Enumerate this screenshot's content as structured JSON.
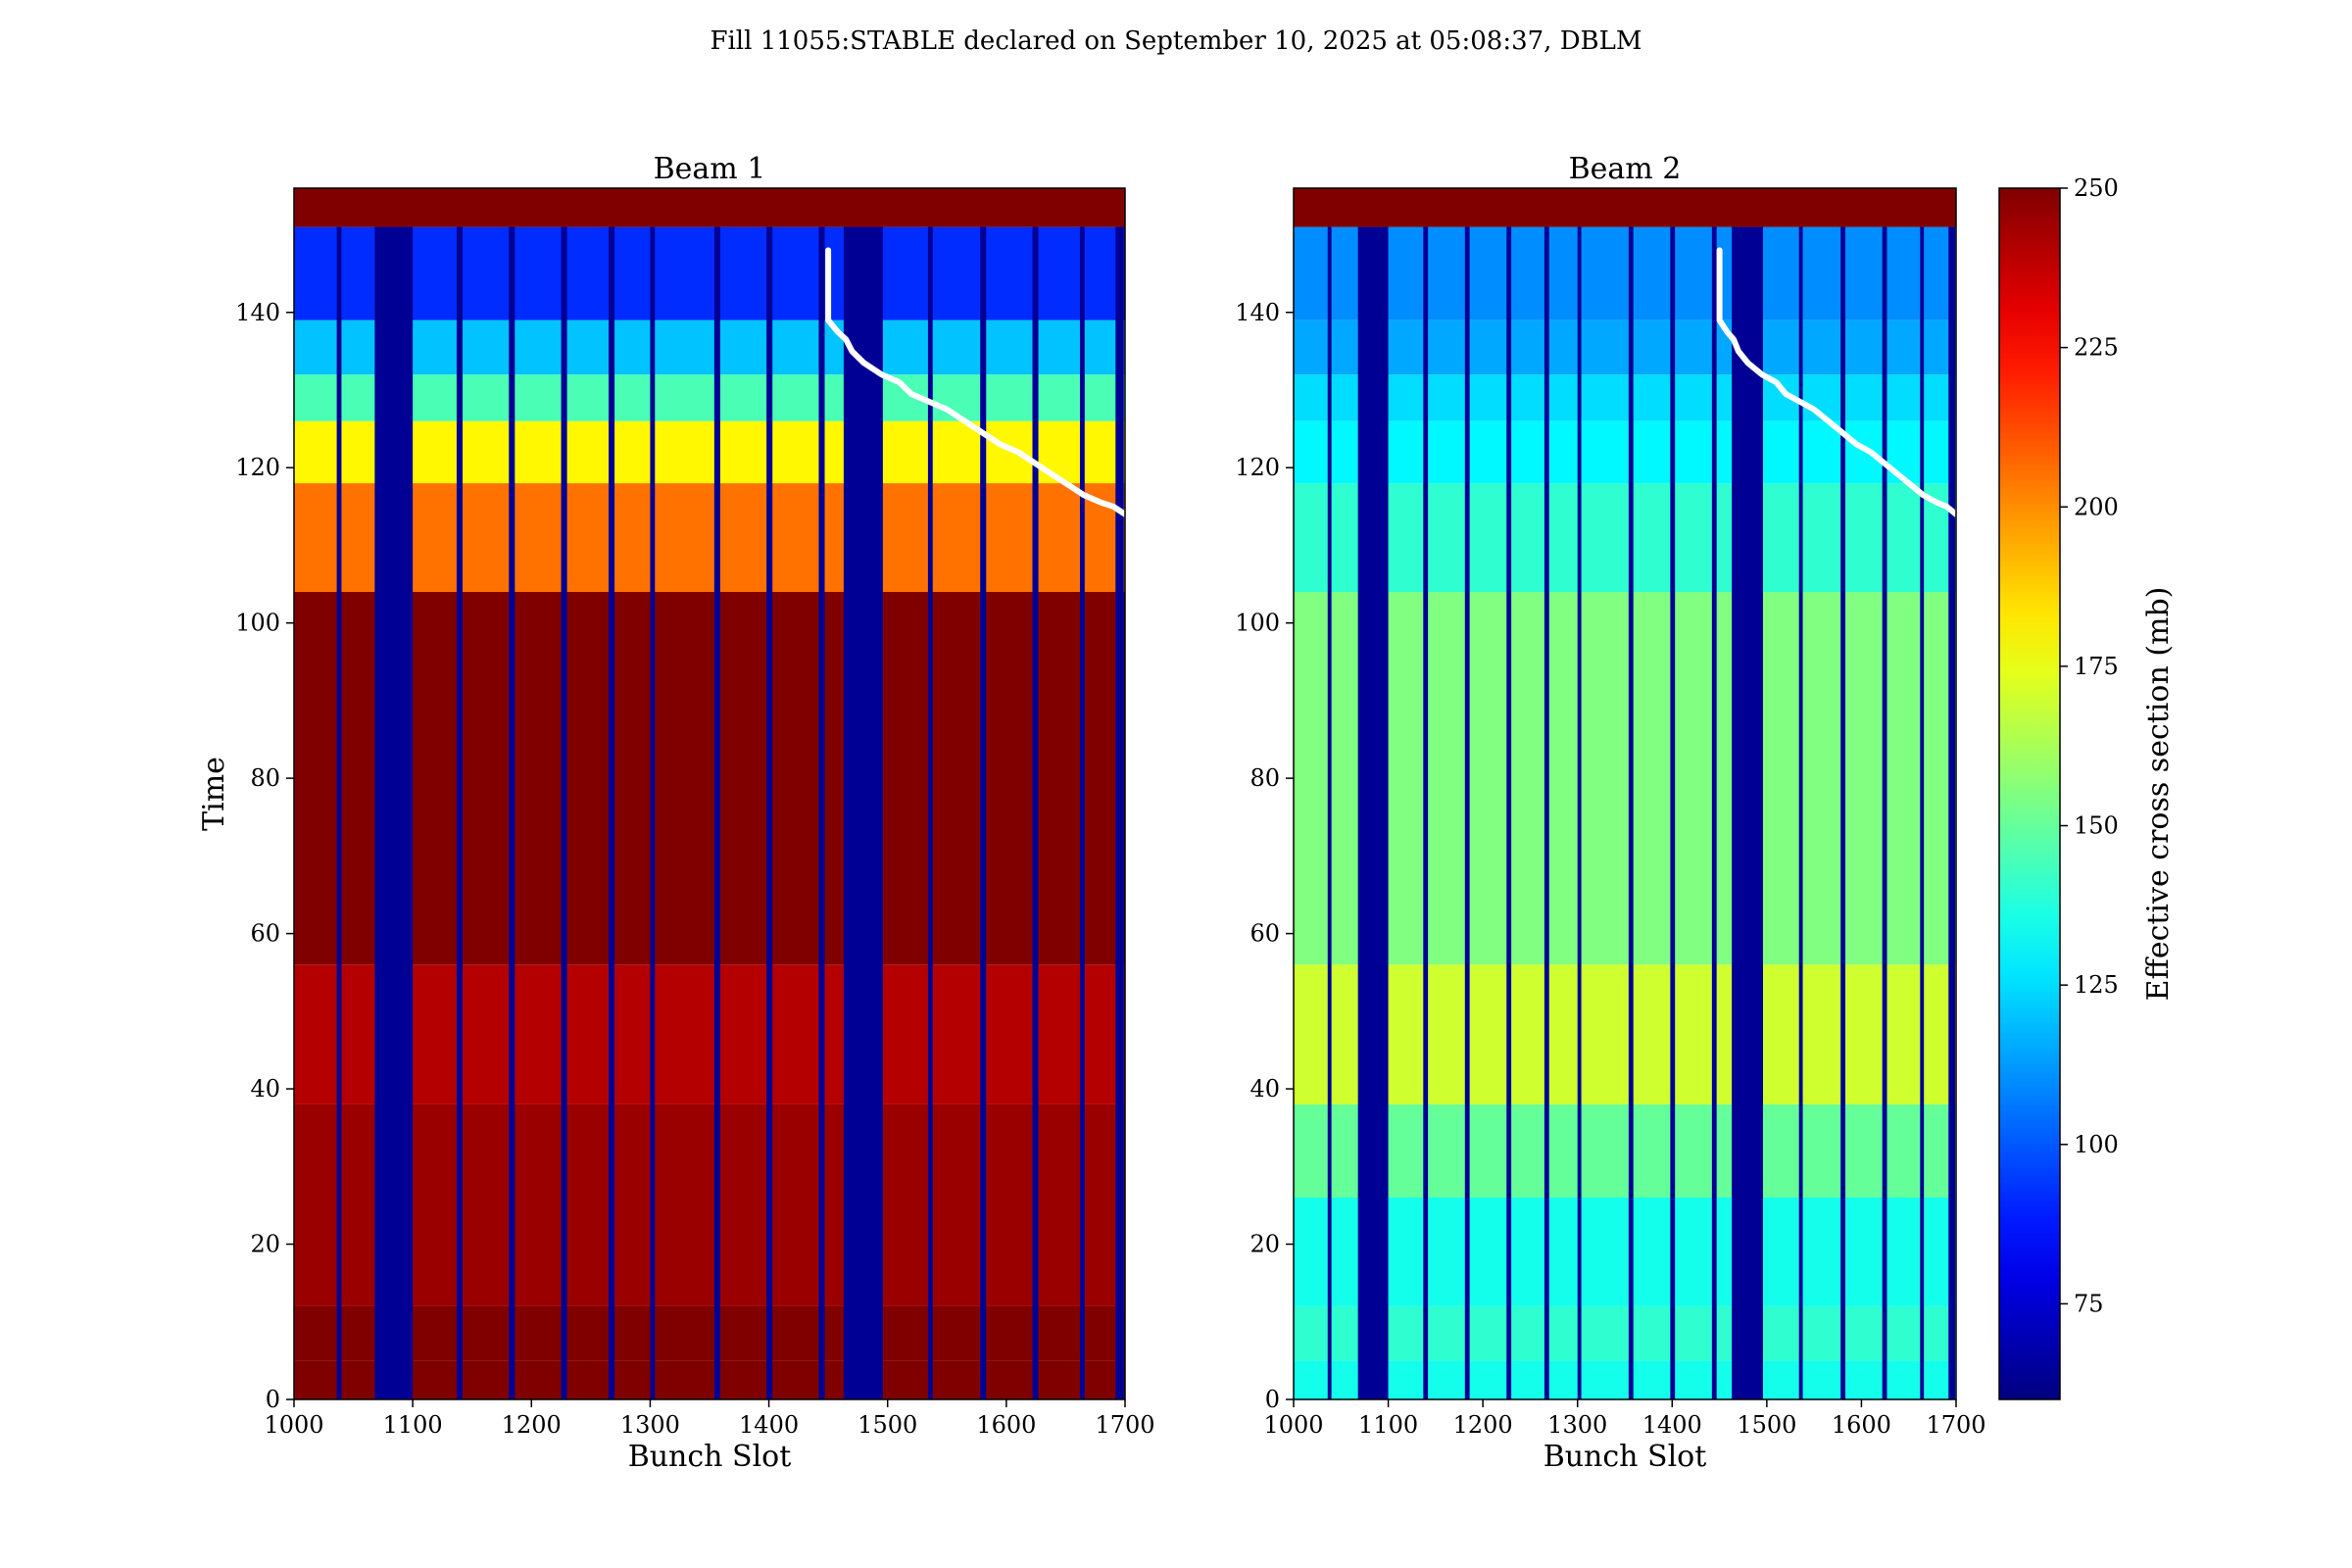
{
  "figure": {
    "suptitle": "Fill 11055:STABLE declared on September 10, 2025 at 05:08:37, DBLM"
  },
  "chart_data": [
    {
      "type": "heatmap",
      "title": "Beam 1",
      "xlabel": "Bunch Slot",
      "ylabel": "Time",
      "xlim": [
        1000,
        1700
      ],
      "ylim": [
        0,
        156
      ],
      "xticks": [
        1000,
        1100,
        1200,
        1300,
        1400,
        1500,
        1600,
        1700
      ],
      "yticks": [
        0,
        20,
        40,
        60,
        80,
        100,
        120,
        140
      ],
      "colormap": "jet",
      "clim": [
        60,
        250
      ],
      "empty_slot_ranges": [
        [
          1036,
          1040
        ],
        [
          1068,
          1100
        ],
        [
          1137,
          1142
        ],
        [
          1181,
          1186
        ],
        [
          1225,
          1230
        ],
        [
          1265,
          1270
        ],
        [
          1300,
          1304
        ],
        [
          1354,
          1359
        ],
        [
          1398,
          1403
        ],
        [
          1442,
          1447
        ],
        [
          1463,
          1496
        ],
        [
          1534,
          1538
        ],
        [
          1578,
          1583
        ],
        [
          1622,
          1627
        ],
        [
          1662,
          1666
        ],
        [
          1692,
          1699
        ]
      ],
      "time_bands_mb": [
        {
          "t": [
            0,
            5
          ],
          "value": 250
        },
        {
          "t": [
            5,
            12
          ],
          "value": 250
        },
        {
          "t": [
            12,
            26
          ],
          "value": 245
        },
        {
          "t": [
            26,
            38
          ],
          "value": 245
        },
        {
          "t": [
            38,
            56
          ],
          "value": 240
        },
        {
          "t": [
            56,
            104
          ],
          "value": 250
        },
        {
          "t": [
            104,
            118
          ],
          "value": 205
        },
        {
          "t": [
            118,
            126
          ],
          "value": 180
        },
        {
          "t": [
            126,
            132
          ],
          "value": 145
        },
        {
          "t": [
            132,
            139
          ],
          "value": 120
        },
        {
          "t": [
            139,
            151
          ],
          "value": 92
        },
        {
          "t": [
            151,
            156
          ],
          "value": 250
        }
      ],
      "overlay_line": {
        "color": "#ffffff",
        "points": [
          [
            1450,
            148
          ],
          [
            1450,
            139
          ],
          [
            1458,
            137.5
          ],
          [
            1465,
            136.5
          ],
          [
            1470,
            135
          ],
          [
            1480,
            133.5
          ],
          [
            1495,
            132
          ],
          [
            1510,
            131
          ],
          [
            1520,
            129.5
          ],
          [
            1535,
            128.5
          ],
          [
            1550,
            127.5
          ],
          [
            1565,
            126
          ],
          [
            1580,
            124.5
          ],
          [
            1595,
            123
          ],
          [
            1610,
            122
          ],
          [
            1625,
            120.5
          ],
          [
            1640,
            119
          ],
          [
            1655,
            117.5
          ],
          [
            1665,
            116.5
          ],
          [
            1680,
            115.5
          ],
          [
            1690,
            115
          ],
          [
            1700,
            114
          ]
        ]
      }
    },
    {
      "type": "heatmap",
      "title": "Beam 2",
      "xlabel": "Bunch Slot",
      "ylabel": "",
      "xlim": [
        1000,
        1700
      ],
      "ylim": [
        0,
        156
      ],
      "xticks": [
        1000,
        1100,
        1200,
        1300,
        1400,
        1500,
        1600,
        1700
      ],
      "yticks": [
        0,
        20,
        40,
        60,
        80,
        100,
        120,
        140
      ],
      "colormap": "jet",
      "clim": [
        60,
        250
      ],
      "empty_slot_ranges": [
        [
          1036,
          1040
        ],
        [
          1068,
          1100
        ],
        [
          1137,
          1142
        ],
        [
          1181,
          1186
        ],
        [
          1225,
          1230
        ],
        [
          1265,
          1270
        ],
        [
          1300,
          1304
        ],
        [
          1354,
          1359
        ],
        [
          1398,
          1403
        ],
        [
          1442,
          1447
        ],
        [
          1463,
          1496
        ],
        [
          1534,
          1538
        ],
        [
          1578,
          1583
        ],
        [
          1622,
          1627
        ],
        [
          1662,
          1666
        ],
        [
          1692,
          1699
        ]
      ],
      "time_bands_mb": [
        {
          "t": [
            0,
            5
          ],
          "value": 135
        },
        {
          "t": [
            5,
            12
          ],
          "value": 140
        },
        {
          "t": [
            12,
            26
          ],
          "value": 135
        },
        {
          "t": [
            26,
            38
          ],
          "value": 150
        },
        {
          "t": [
            38,
            56
          ],
          "value": 170
        },
        {
          "t": [
            56,
            104
          ],
          "value": 155
        },
        {
          "t": [
            104,
            118
          ],
          "value": 140
        },
        {
          "t": [
            118,
            126
          ],
          "value": 130
        },
        {
          "t": [
            126,
            132
          ],
          "value": 125
        },
        {
          "t": [
            132,
            139
          ],
          "value": 115
        },
        {
          "t": [
            139,
            151
          ],
          "value": 110
        },
        {
          "t": [
            151,
            156
          ],
          "value": 250
        }
      ],
      "overlay_line": {
        "color": "#ffffff",
        "points": [
          [
            1450,
            148
          ],
          [
            1450,
            139
          ],
          [
            1458,
            137.5
          ],
          [
            1465,
            136.5
          ],
          [
            1470,
            135
          ],
          [
            1480,
            133.5
          ],
          [
            1495,
            132
          ],
          [
            1510,
            131
          ],
          [
            1520,
            129.5
          ],
          [
            1535,
            128.5
          ],
          [
            1550,
            127.5
          ],
          [
            1565,
            126
          ],
          [
            1580,
            124.5
          ],
          [
            1595,
            123
          ],
          [
            1610,
            122
          ],
          [
            1625,
            120.5
          ],
          [
            1640,
            119
          ],
          [
            1655,
            117.5
          ],
          [
            1665,
            116.5
          ],
          [
            1680,
            115.5
          ],
          [
            1690,
            115
          ],
          [
            1700,
            114
          ]
        ]
      }
    }
  ],
  "colorbar": {
    "label": "Effective cross section (mb)",
    "range": [
      60,
      250
    ],
    "ticks": [
      75,
      100,
      125,
      150,
      175,
      200,
      225,
      250
    ],
    "colormap": "jet"
  }
}
